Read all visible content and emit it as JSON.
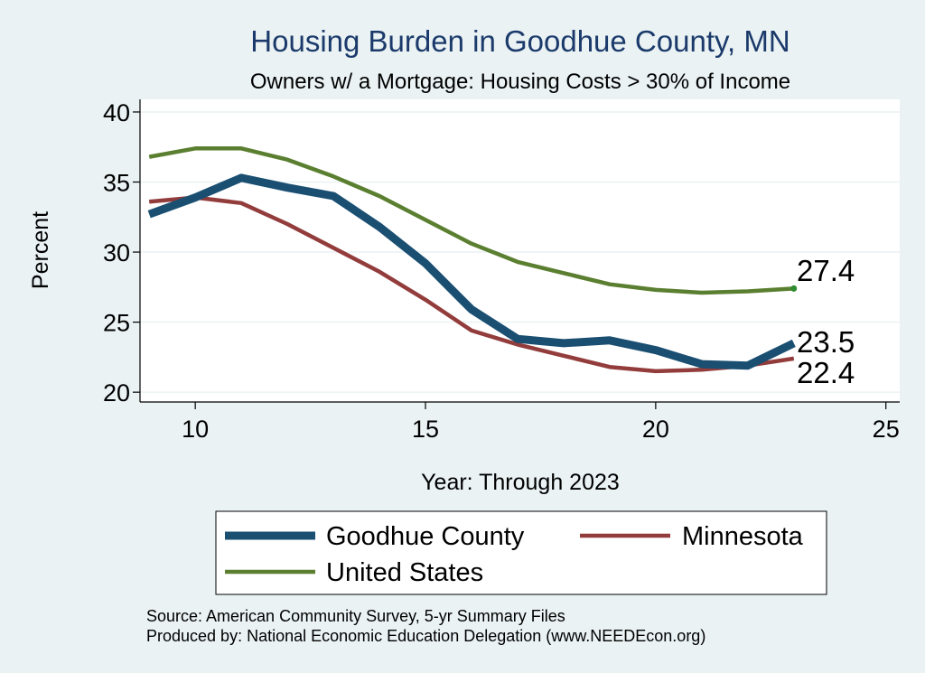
{
  "colors": {
    "background": "#eaf2f3",
    "plot_background": "#ffffff",
    "grid": "#eaf2f3",
    "title": "#1b3a6b",
    "goodhue": "#1b4f72",
    "minnesota": "#933c3c",
    "united_states": "#5b7f30"
  },
  "chart_data": {
    "type": "line",
    "title": "Housing Burden in Goodhue County, MN",
    "subtitle": "Owners w/ a Mortgage: Housing Costs > 30% of Income",
    "xlabel": "Year: Through 2023",
    "ylabel": "Percent",
    "xlim": [
      8.8,
      25.3
    ],
    "ylim": [
      19.3,
      40.9
    ],
    "xticks": [
      10,
      15,
      20,
      25
    ],
    "yticks": [
      20,
      25,
      30,
      35,
      40
    ],
    "grid": true,
    "legend_position": "bottom",
    "x": [
      9,
      10,
      11,
      12,
      13,
      14,
      15,
      16,
      17,
      18,
      19,
      20,
      21,
      22,
      23
    ],
    "series": [
      {
        "name": "Goodhue County",
        "color": "#1b4f72",
        "values": [
          32.7,
          33.9,
          35.3,
          34.6,
          34.0,
          31.8,
          29.2,
          25.9,
          23.8,
          23.5,
          23.7,
          23.0,
          22.0,
          21.9,
          23.5
        ],
        "end_label": "23.5"
      },
      {
        "name": "Minnesota",
        "color": "#933c3c",
        "values": [
          33.6,
          33.9,
          33.5,
          32.0,
          30.3,
          28.6,
          26.6,
          24.4,
          23.4,
          22.6,
          21.8,
          21.5,
          21.6,
          21.9,
          22.4
        ],
        "end_label": "22.4"
      },
      {
        "name": "United States",
        "color": "#5b7f30",
        "values": [
          36.8,
          37.4,
          37.4,
          36.6,
          35.4,
          34.0,
          32.3,
          30.6,
          29.3,
          28.5,
          27.7,
          27.3,
          27.1,
          27.2,
          27.4
        ],
        "end_label": "27.4"
      }
    ],
    "notes": [
      "Source: American Community Survey, 5-yr Summary Files",
      "Produced by: National Economic Education Delegation (www.NEEDEcon.org)"
    ]
  }
}
